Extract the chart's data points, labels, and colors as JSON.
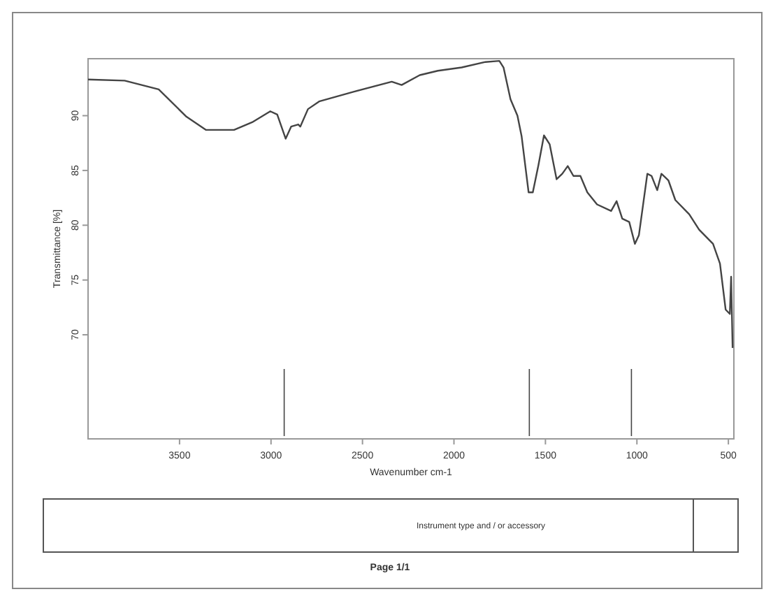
{
  "chart_data": {
    "type": "line",
    "xlabel": "Wavenumber cm-1",
    "ylabel": "Transmittance [%]",
    "xlim": [
      4000,
      470
    ],
    "ylim": [
      60.5,
      95.2
    ],
    "xticks": [
      3500,
      3000,
      2500,
      2000,
      1500,
      1000,
      500
    ],
    "yticks": [
      90,
      85,
      80,
      75,
      70
    ],
    "grid": false,
    "line_style": "solid",
    "series": [
      {
        "color": "#444444",
        "x": [
          4000,
          3800,
          3614,
          3462,
          3355,
          3202,
          3103,
          3004,
          2966,
          2920,
          2890,
          2851,
          2840,
          2798,
          2737,
          2546,
          2340,
          2286,
          2187,
          2088,
          1958,
          1828,
          1752,
          1729,
          1691,
          1653,
          1630,
          1592,
          1569,
          1538,
          1508,
          1477,
          1439,
          1408,
          1378,
          1347,
          1309,
          1271,
          1218,
          1141,
          1111,
          1080,
          1042,
          1011,
          989,
          943,
          920,
          889,
          866,
          828,
          790,
          714,
          660,
          584,
          546,
          515,
          492,
          485,
          477
        ],
        "values": [
          93.3,
          93.2,
          92.4,
          89.9,
          88.7,
          88.7,
          89.4,
          90.4,
          90.1,
          87.9,
          89.0,
          89.2,
          89.0,
          90.6,
          91.3,
          92.2,
          93.1,
          92.8,
          93.7,
          94.1,
          94.4,
          94.9,
          95.0,
          94.4,
          91.5,
          90.0,
          88.1,
          83.0,
          83.0,
          85.5,
          88.2,
          87.4,
          84.2,
          84.7,
          85.4,
          84.5,
          84.5,
          83.0,
          81.9,
          81.3,
          82.2,
          80.6,
          80.3,
          78.3,
          79.1,
          84.7,
          84.5,
          83.2,
          84.7,
          84.1,
          82.3,
          81.0,
          79.6,
          78.3,
          76.5,
          72.3,
          71.9,
          75.3,
          68.8
        ]
      }
    ],
    "ref_lines": [
      {
        "axis": "x",
        "value": 2928,
        "color": "#444444"
      },
      {
        "axis": "x",
        "value": 1588,
        "color": "#444444"
      },
      {
        "axis": "x",
        "value": 1030,
        "color": "#444444"
      }
    ],
    "annotations": [
      "Instrument type and / or accessory",
      "Page 1/1"
    ]
  }
}
